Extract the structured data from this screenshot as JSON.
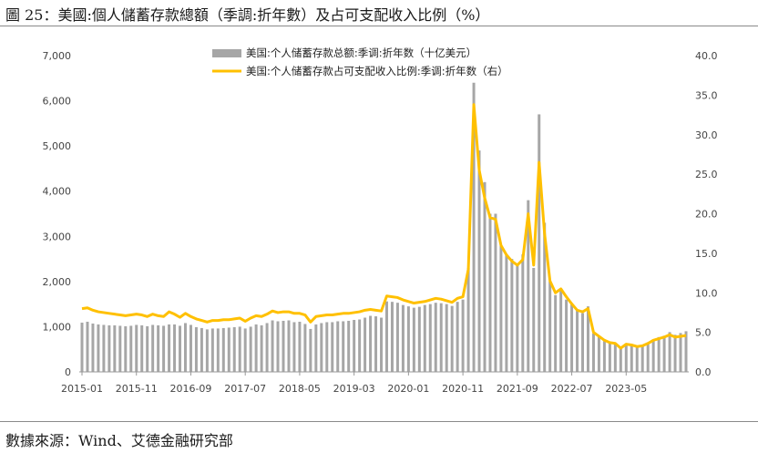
{
  "page": {
    "title": "圖 25：美國:個人儲蓄存款總額（季調:折年數）及占可支配收入比例（%）",
    "source": "數據來源：Wind、艾德金融研究部"
  },
  "chart_data": {
    "type": "bar+line",
    "colors": {
      "bars": "#a6a6a6",
      "line": "#ffc000",
      "axis": "#999999"
    },
    "x_tick_labels": [
      "2015-01",
      "2015-11",
      "2016-09",
      "2017-07",
      "2018-05",
      "2019-03",
      "2020-01",
      "2020-11",
      "2021-09",
      "2022-07",
      "2023-05"
    ],
    "y_left": {
      "ylim": [
        0,
        7000
      ],
      "ticks": [
        "0",
        "1,000",
        "2,000",
        "3,000",
        "4,000",
        "5,000",
        "6,000",
        "7,000"
      ]
    },
    "y_right": {
      "ylim": [
        0,
        40
      ],
      "ticks": [
        "0.0",
        "5.0",
        "10.0",
        "15.0",
        "20.0",
        "25.0",
        "30.0",
        "35.0",
        "40.0"
      ]
    },
    "legend": [
      "美国:个人储蓄存款总额:季调:折年数（十亿美元）",
      "美国:个人储蓄存款占可支配收入比例:季调:折年数（右）"
    ],
    "legend_position": "top",
    "series": [
      {
        "name": "美国:个人储蓄存款总额:季调:折年数（十亿美元）",
        "axis": "left",
        "type": "bar",
        "values": [
          1090,
          1110,
          1070,
          1050,
          1040,
          1030,
          1030,
          1020,
          1010,
          1020,
          1040,
          1030,
          1010,
          1040,
          1030,
          1020,
          1050,
          1050,
          1020,
          1080,
          1040,
          990,
          970,
          940,
          960,
          960,
          970,
          980,
          990,
          1000,
          960,
          1000,
          1050,
          1030,
          1080,
          1140,
          1120,
          1130,
          1140,
          1100,
          1110,
          1060,
          950,
          1050,
          1080,
          1100,
          1100,
          1120,
          1120,
          1130,
          1150,
          1160,
          1200,
          1240,
          1230,
          1200,
          1560,
          1550,
          1530,
          1480,
          1450,
          1420,
          1440,
          1480,
          1500,
          1530,
          1520,
          1500,
          1460,
          1550,
          1600,
          2300,
          6400,
          4900,
          4200,
          3500,
          3500,
          2800,
          2600,
          2500,
          2400,
          2600,
          3800,
          2300,
          5700,
          3300,
          2000,
          1700,
          1800,
          1600,
          1500,
          1350,
          1300,
          1450,
          850,
          780,
          680,
          640,
          640,
          520,
          590,
          600,
          570,
          600,
          650,
          720,
          770,
          800,
          880,
          820,
          860,
          900
        ]
      },
      {
        "name": "美国:个人储蓄存款占可支配收入比例:季调:折年数（右）",
        "axis": "right",
        "type": "line",
        "values": [
          8.0,
          8.1,
          7.8,
          7.6,
          7.5,
          7.4,
          7.3,
          7.2,
          7.1,
          7.2,
          7.3,
          7.2,
          7.0,
          7.3,
          7.1,
          7.0,
          7.6,
          7.3,
          6.9,
          7.4,
          7.0,
          6.7,
          6.5,
          6.3,
          6.5,
          6.5,
          6.6,
          6.6,
          6.7,
          6.8,
          6.4,
          6.8,
          7.1,
          7.0,
          7.3,
          7.7,
          7.5,
          7.6,
          7.6,
          7.4,
          7.4,
          7.2,
          6.3,
          7.0,
          7.1,
          7.2,
          7.2,
          7.3,
          7.4,
          7.4,
          7.5,
          7.6,
          7.8,
          7.9,
          7.8,
          7.7,
          9.6,
          9.5,
          9.4,
          9.1,
          8.9,
          8.7,
          8.8,
          8.9,
          9.1,
          9.3,
          9.2,
          9.0,
          8.8,
          9.3,
          9.5,
          13.0,
          33.8,
          25.5,
          22.0,
          19.5,
          19.3,
          16.0,
          14.8,
          14.0,
          13.5,
          14.2,
          20.0,
          13.5,
          26.5,
          17.5,
          11.5,
          10.0,
          10.5,
          9.5,
          8.6,
          7.8,
          7.6,
          8.0,
          5.0,
          4.5,
          4.0,
          3.7,
          3.6,
          3.0,
          3.5,
          3.4,
          3.2,
          3.3,
          3.6,
          4.0,
          4.2,
          4.4,
          4.7,
          4.4,
          4.5,
          4.6
        ]
      }
    ]
  }
}
